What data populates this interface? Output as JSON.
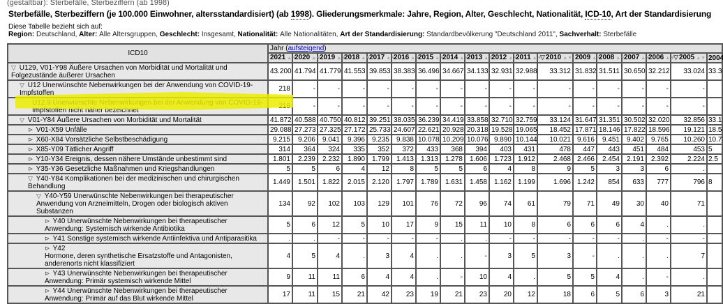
{
  "breadcrumb": "(gestaltbar): Sterbefälle, Sterbeziffern (ab 1998)",
  "title": {
    "pre": "Sterbefälle, Sterbeziffern (je 100.000 Einwohner, altersstandardisiert) (ab ",
    "year": "1998",
    "mid": "). Gliederungsmerkmale: Jahre, Region, Alter, Geschlecht, Nationalität, ",
    "icd": "ICD-10",
    "post": ", Art der Standardisierung"
  },
  "info": {
    "intro": "Diese Tabelle bezieht sich auf:",
    "filters": [
      {
        "key": "Region",
        "value": "Deutschland"
      },
      {
        "key": "Alter",
        "value": "Alle Altersgruppen"
      },
      {
        "key": "Geschlecht",
        "value": "Insgesamt"
      },
      {
        "key": "Nationalität",
        "value": "Alle Nationalitäten"
      },
      {
        "key": "Art der Standardisierung",
        "value": "Standardbevölkerung \"Deutschland 2011\""
      },
      {
        "key": "Sachverhalt",
        "value": "Sterbefälle"
      }
    ]
  },
  "table": {
    "icd_header": "ICD10",
    "jahr_label": "Jahr (",
    "jahr_link": "aufsteigend",
    "jahr_close": ")",
    "highlight_color": "#ecec00",
    "years": [
      {
        "y": "2021"
      },
      {
        "y": "2020"
      },
      {
        "y": "2019"
      },
      {
        "y": "2018"
      },
      {
        "y": "2017"
      },
      {
        "y": "2016"
      },
      {
        "y": "2015"
      },
      {
        "y": "2014"
      },
      {
        "y": "2013"
      },
      {
        "y": "2012"
      },
      {
        "y": "2011"
      },
      {
        "y": "2010",
        "collapse": true
      },
      {
        "y": "2009"
      },
      {
        "y": "2008"
      },
      {
        "y": "2007"
      },
      {
        "y": "2006"
      },
      {
        "y": "2005",
        "collapse": true
      },
      {
        "y": "2004"
      }
    ],
    "rows": [
      {
        "level": 0,
        "toggle": "collapse",
        "label": "U129, V01-Y98 Äußere Ursachen von Morbidität und Mortalität und Folgezustände äußerer Ursachen",
        "values": [
          "43.200",
          "41.794",
          "41.779",
          "41.553",
          "39.853",
          "38.383",
          "36.496",
          "34.667",
          "34.133",
          "32.931",
          "32.988",
          "33.312",
          "31.832",
          "31.511",
          "30.650",
          "32.212",
          "33.024",
          "33.3"
        ]
      },
      {
        "level": 1,
        "toggle": "collapse",
        "label": "U12 Unerwünschte Nebenwirkungen bei der Anwendung von COVID-19-Impfstoffen",
        "values": [
          "218",
          "-",
          "-",
          "-",
          "-",
          "-",
          "-",
          "-",
          "-",
          "-",
          "-",
          "-",
          "-",
          "-",
          "-",
          "-",
          "-",
          ""
        ]
      },
      {
        "level": 2,
        "toggle": "none",
        "highlight": true,
        "label": "U12.9 Unerwünschte Nebenwirkungen bei der Anwendung von COVID-19-Impfstoffen nicht näher bezeichnet",
        "values": [
          "218",
          "-",
          "-",
          "-",
          "-",
          "-",
          "-",
          "-",
          "-",
          "-",
          "-",
          "-",
          "-",
          "-",
          "-",
          "-",
          "-",
          ""
        ]
      },
      {
        "level": 1,
        "toggle": "collapse",
        "label": "V01-Y84 Äußere Ursachen von Morbidität und Mortalität",
        "values": [
          "41.872",
          "40.588",
          "40.750",
          "40.812",
          "39.251",
          "38.035",
          "36.239",
          "34.419",
          "33.858",
          "32.710",
          "32.759",
          "33.124",
          "31.647",
          "31.351",
          "30.502",
          "32.020",
          "32.856",
          "33.1"
        ]
      },
      {
        "level": 2,
        "toggle": "expand",
        "label": "V01-X59 Unfälle",
        "values": [
          "29.088",
          "27.273",
          "27.325",
          "27.172",
          "25.733",
          "24.607",
          "22.621",
          "20.928",
          "20.318",
          "19.528",
          "19.065",
          "18.452",
          "17.871",
          "18.146",
          "17.822",
          "18.596",
          "19.121",
          "18.5"
        ]
      },
      {
        "level": 2,
        "toggle": "expand",
        "label": "X60-X84 Vorsätzliche Selbstbeschädigung",
        "values": [
          "9.215",
          "9.206",
          "9.041",
          "9.396",
          "9.235",
          "9.838",
          "10.078",
          "10.209",
          "10.076",
          "9.890",
          "10.144",
          "10.021",
          "9.616",
          "9.451",
          "9.402",
          "9.765",
          "10.260",
          "10.7"
        ]
      },
      {
        "level": 2,
        "toggle": "expand",
        "label": "X85-Y09 Tätlicher Angriff",
        "values": [
          "314",
          "364",
          "324",
          "335",
          "352",
          "372",
          "433",
          "368",
          "394",
          "403",
          "431",
          "478",
          "447",
          "443",
          "451",
          "484",
          "453",
          "5"
        ]
      },
      {
        "level": 2,
        "toggle": "expand",
        "label": "Y10-Y34 Ereignis, dessen nähere Umstände unbestimmt sind",
        "values": [
          "1.801",
          "2.239",
          "2.232",
          "1.890",
          "1.799",
          "1.413",
          "1.313",
          "1.278",
          "1.606",
          "1.723",
          "1.912",
          "2.468",
          "2.466",
          "2.454",
          "2.191",
          "2.392",
          "2.224",
          "2.5"
        ]
      },
      {
        "level": 2,
        "toggle": "expand",
        "label": "Y35-Y36 Gesetzliche Maßnahmen und Kriegshandlungen",
        "values": [
          "5",
          "5",
          "6",
          "4",
          "12",
          "8",
          "5",
          "5",
          "6",
          "4",
          "8",
          "9",
          "5",
          "3",
          "3",
          "6",
          ".",
          ""
        ]
      },
      {
        "level": 2,
        "toggle": "collapse",
        "label": "Y40-Y84 Komplikationen bei der medizinischen und chirurgischen Behandlung",
        "values": [
          "1.449",
          "1.501",
          "1.822",
          "2.015",
          "2.120",
          "1.797",
          "1.789",
          "1.631",
          "1.458",
          "1.162",
          "1.199",
          "1.696",
          "1.242",
          "854",
          "633",
          "777",
          "796",
          "8"
        ]
      },
      {
        "level": 3,
        "toggle": "collapse",
        "label": "Y40-Y59 Unerwünschte Nebenwirkungen bei therapeutischer Anwendung von Arzneimitteln, Drogen oder biologisch aktiven Substanzen",
        "values": [
          "134",
          "92",
          "102",
          "103",
          "129",
          "101",
          "76",
          "72",
          "96",
          "74",
          "61",
          "79",
          "71",
          "49",
          "30",
          "40",
          "71",
          ""
        ]
      },
      {
        "level": 4,
        "toggle": "expand",
        "label": "Y40 Unerwünschte Nebenwirkungen bei therapeutischer Anwendung: Systemisch wirkende Antibiotika",
        "values": [
          "5",
          "6",
          "12",
          "5",
          "10",
          "17",
          "9",
          "15",
          "11",
          "10",
          "8",
          "6",
          "6",
          "6",
          "4",
          ".",
          ".",
          ""
        ]
      },
      {
        "level": 4,
        "toggle": "expand",
        "label": "Y41 Sonstige systemisch wirkende Antiinfektiva und Antiparasitika",
        "values": [
          ".",
          ".",
          "-",
          "-",
          "-",
          "-",
          "-",
          ".",
          ".",
          "-",
          "-",
          "-",
          "-",
          "-",
          ".",
          "-",
          "-",
          ""
        ]
      },
      {
        "level": 4,
        "toggle": "expand",
        "label": "Y42\nHormone, deren synthetische Ersatzstoffe und Antagonisten, anderenorts nicht klassifiziert",
        "values": [
          "4",
          "5",
          "4",
          ".",
          "3",
          "4",
          ".",
          ".",
          "-",
          "3",
          "5",
          "3",
          "-",
          ".",
          ".",
          ".",
          "7",
          ""
        ]
      },
      {
        "level": 4,
        "toggle": "expand",
        "label": "Y43 Unerwünschte Nebenwirkungen bei therapeutischer Anwendung: Primär systemisch wirkende Mittel",
        "values": [
          "9",
          "11",
          "11",
          "6",
          "4",
          "4",
          ".",
          "-",
          "10",
          "4",
          ".",
          "5",
          "5",
          "4",
          ".",
          "-",
          ".",
          ""
        ]
      },
      {
        "level": 4,
        "toggle": "expand",
        "label": "Y44 Unerwünschte Nebenwirkungen bei therapeutischer Anwendung: Primär auf das Blut wirkende Mittel",
        "values": [
          "17",
          "11",
          "15",
          "21",
          "42",
          "23",
          "19",
          "21",
          "23",
          "20",
          "12",
          "18",
          "6",
          "5",
          "6",
          "3",
          "21",
          ""
        ]
      }
    ]
  }
}
